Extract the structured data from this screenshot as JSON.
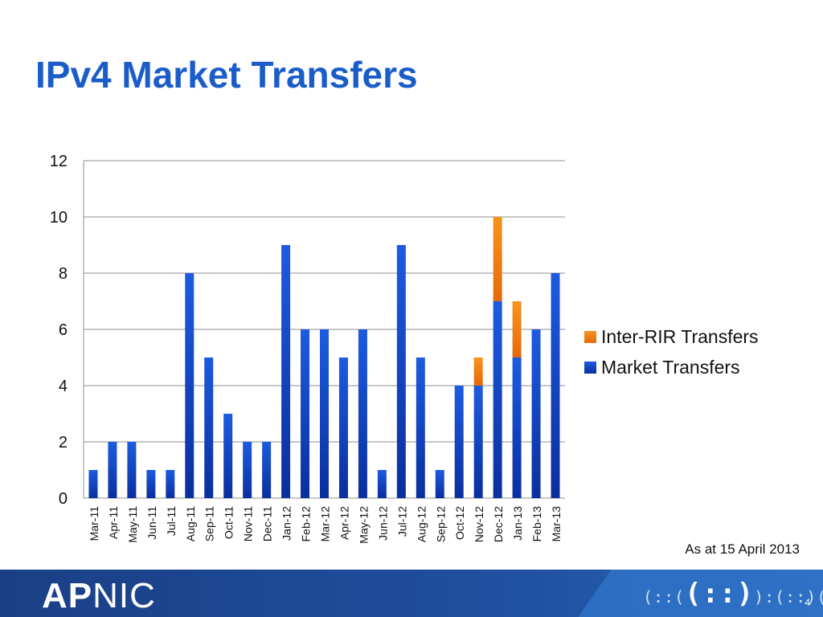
{
  "slide": {
    "title": "IPv4 Market Transfers",
    "note": "As at 15 April 2013",
    "page_number": "4"
  },
  "footer": {
    "logo_bold": "AP",
    "logo_rest": "NIC",
    "brand_mark": "(::(",
    "brand_mark_center": "(::)",
    "brand_mark_tail": "):(::)(::):(::)"
  },
  "colors": {
    "market": "#1446c8",
    "inter_rir": "#f07a12",
    "title": "#1a5dc8",
    "grid": "#8c8c8c"
  },
  "chart_data": {
    "type": "bar",
    "stacked": true,
    "categories": [
      "Mar-11",
      "Apr-11",
      "May-11",
      "Jun-11",
      "Jul-11",
      "Aug-11",
      "Sep-11",
      "Oct-11",
      "Nov-11",
      "Dec-11",
      "Jan-12",
      "Feb-12",
      "Mar-12",
      "Apr-12",
      "May-12",
      "Jun-12",
      "Jul-12",
      "Aug-12",
      "Sep-12",
      "Oct-12",
      "Nov-12",
      "Dec-12",
      "Jan-13",
      "Feb-13",
      "Mar-13"
    ],
    "series": [
      {
        "name": "Market Transfers",
        "color": "#1446c8",
        "values": [
          1,
          2,
          2,
          1,
          1,
          8,
          5,
          3,
          2,
          2,
          9,
          6,
          6,
          5,
          6,
          1,
          9,
          5,
          1,
          4,
          4,
          7,
          5,
          6,
          8
        ]
      },
      {
        "name": "Inter-RIR Transfers",
        "color": "#f07a12",
        "values": [
          0,
          0,
          0,
          0,
          0,
          0,
          0,
          0,
          0,
          0,
          0,
          0,
          0,
          0,
          0,
          0,
          0,
          0,
          0,
          0,
          1,
          3,
          2,
          0,
          0
        ]
      }
    ],
    "ylim": [
      0,
      12
    ],
    "yticks": [
      0,
      2,
      4,
      6,
      8,
      10,
      12
    ],
    "grid": true,
    "legend_position": "right",
    "legend_order": [
      "Inter-RIR Transfers",
      "Market Transfers"
    ]
  }
}
